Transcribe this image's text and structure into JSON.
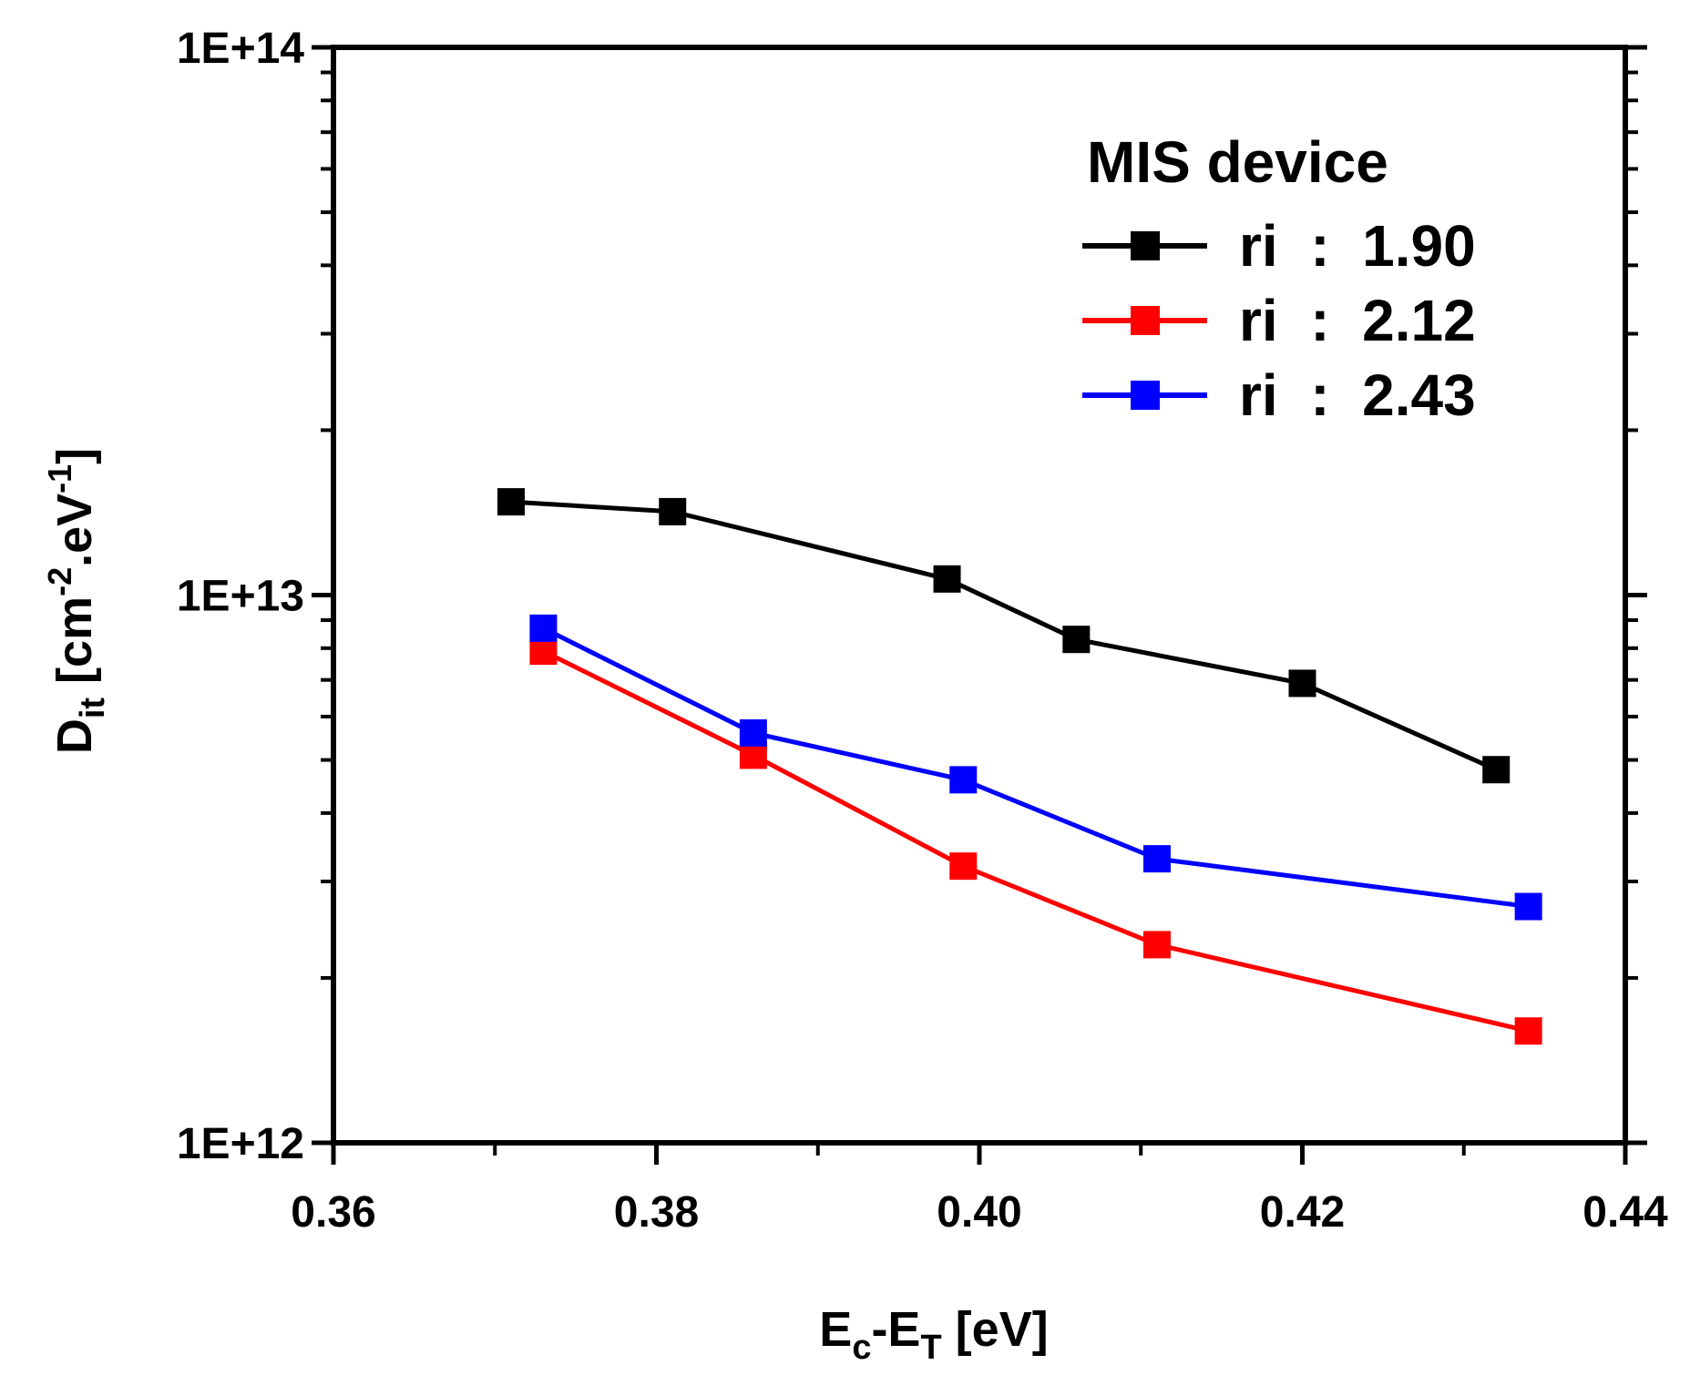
{
  "chart_data": {
    "type": "line",
    "title": "",
    "xlabel": {
      "main": "E",
      "sub1": "c",
      "mid": "-E",
      "sub2": "T",
      "unit": " [eV]"
    },
    "ylabel": {
      "main": "D",
      "sub": "it",
      "open": " [cm",
      "sup1": "-2",
      "dot": ".",
      "ev": "eV",
      "sup2": "-1",
      "close": "]"
    },
    "xlim": [
      0.36,
      0.44
    ],
    "ylim": [
      1000000000000.0,
      100000000000000.0
    ],
    "yscale": "log",
    "x_ticks": [
      "0.36",
      "0.38",
      "0.40",
      "0.42",
      "0.44"
    ],
    "y_ticks": [
      "1E+12",
      "1E+13",
      "1E+14"
    ],
    "legend": {
      "title": "MIS device",
      "placement": "top-right"
    },
    "series": [
      {
        "name": "ri  :  1.90",
        "color": "#000000",
        "marker": "square",
        "x": [
          0.371,
          0.381,
          0.398,
          0.406,
          0.42,
          0.432
        ],
        "y": [
          14800000000000.0,
          14200000000000.0,
          10700000000000.0,
          8300000000000.0,
          6900000000000.0,
          4800000000000.0
        ]
      },
      {
        "name": "ri  :  2.12",
        "color": "#ff0000",
        "marker": "square",
        "x": [
          0.373,
          0.386,
          0.399,
          0.411,
          0.434
        ],
        "y": [
          7900000000000.0,
          5100000000000.0,
          3200000000000.0,
          2300000000000.0,
          1600000000000.0
        ]
      },
      {
        "name": "ri  :  2.43",
        "color": "#0000ff",
        "marker": "square",
        "x": [
          0.373,
          0.386,
          0.399,
          0.411,
          0.434
        ],
        "y": [
          8700000000000.0,
          5600000000000.0,
          4600000000000.0,
          3300000000000.0,
          2700000000000.0
        ]
      }
    ]
  }
}
